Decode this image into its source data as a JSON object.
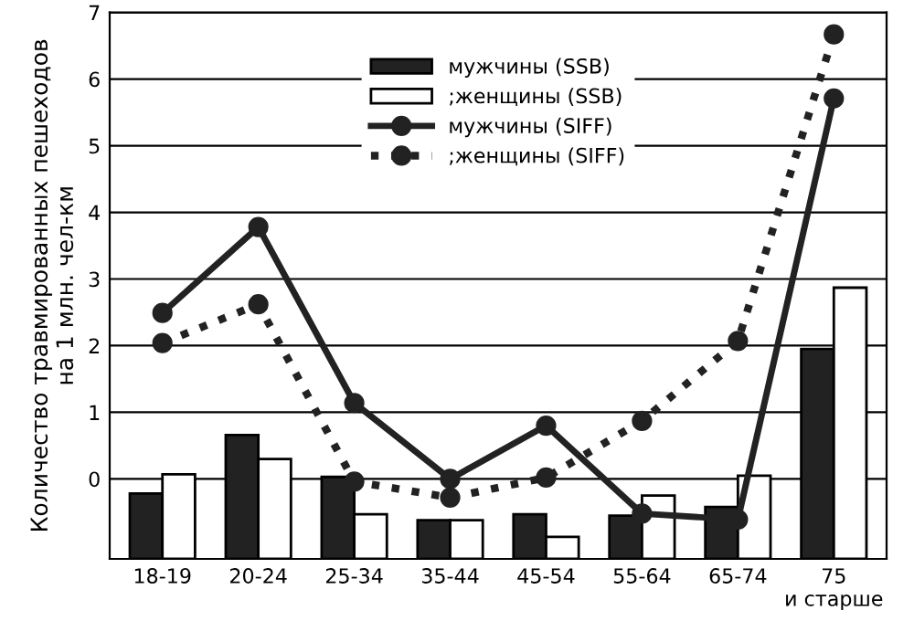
{
  "chart_data": {
    "type": "bar",
    "ylabel": "Количество травмированных пешеходов\nна 1 млн. чел-км",
    "categories": [
      "18-19",
      "20-24",
      "25-34",
      "35-44",
      "45-54",
      "55-64",
      "65-74",
      "75\nи старше"
    ],
    "ylim": [
      -1.2,
      7
    ],
    "yticks": [
      0,
      1,
      2,
      3,
      4,
      5,
      6,
      7
    ],
    "grid": "y",
    "legend": "top",
    "series": [
      {
        "name": "мужчины (SSB)",
        "color": "#222222",
        "base": [
          -1.2,
          -1.2,
          -1.2,
          -1.2,
          -1.2,
          -1.2,
          -1.2,
          -1.2
        ],
        "values": [
          0.98,
          1.86,
          1.23,
          0.58,
          0.67,
          0.65,
          0.78,
          3.15
        ]
      },
      {
        "name": ";женщины (SSB)",
        "color": "#ffffff",
        "base": [
          -1.2,
          -1.2,
          -1.2,
          -1.2,
          -1.2,
          -1.2,
          -1.2,
          -1.2
        ],
        "values": [
          1.27,
          1.5,
          0.67,
          0.58,
          0.33,
          0.95,
          1.25,
          4.07
        ]
      },
      {
        "name": "мужчины (SIFF)",
        "type": "line",
        "color": "#222222",
        "marker": "circle",
        "line_style": "solid",
        "values": [
          2.49,
          3.78,
          1.14,
          0.0,
          0.8,
          -0.52,
          -0.61,
          5.71
        ]
      },
      {
        "name": ";женщины (SIFF)",
        "type": "line",
        "color": "#222222",
        "marker": "circle",
        "line_style": "dotted",
        "values": [
          2.04,
          2.62,
          -0.04,
          -0.28,
          0.02,
          0.87,
          2.07,
          6.67
        ]
      }
    ]
  }
}
